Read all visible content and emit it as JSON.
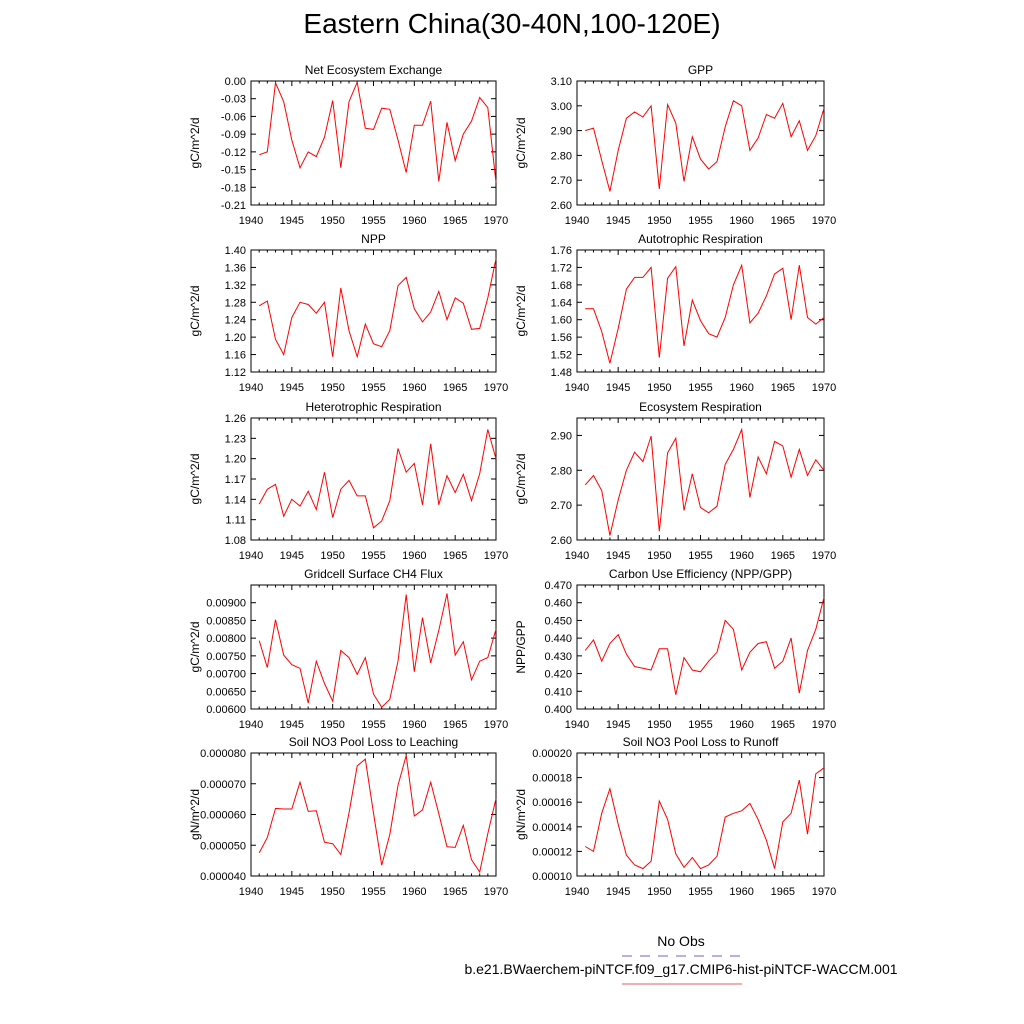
{
  "title": "Eastern China(30-40N,100-120E)",
  "legend": {
    "obs_label": "No Obs",
    "obs_color": "#6666cc",
    "case_label": "b.e21.BWaerchem-piNTCF.f09_g17.CMIP6-hist-piNTCF-WACCM.001",
    "case_color": "#e06060"
  },
  "series_color": "#ff0000",
  "chart_data": [
    {
      "type": "line",
      "title": "Net Ecosystem Exchange",
      "ylabel": "gC/m^2/d",
      "ylim": [
        -0.21,
        0.0
      ],
      "xlim": [
        1940,
        1970
      ],
      "yticks": [
        "0.00",
        "-0.03",
        "-0.06",
        "-0.09",
        "-0.12",
        "-0.15",
        "-0.18",
        "-0.21"
      ],
      "ytick_values": [
        0.0,
        -0.03,
        -0.06,
        -0.09,
        -0.12,
        -0.15,
        -0.18,
        -0.21
      ],
      "xticks": [
        "1940",
        "1945",
        "1950",
        "1955",
        "1960",
        "1965",
        "1970"
      ],
      "x": [
        1941,
        1942,
        1943,
        1944,
        1945,
        1946,
        1947,
        1948,
        1949,
        1950,
        1951,
        1952,
        1953,
        1954,
        1955,
        1956,
        1957,
        1958,
        1959,
        1960,
        1961,
        1962,
        1963,
        1964,
        1965,
        1966,
        1967,
        1968,
        1969,
        1970
      ],
      "values": [
        -0.125,
        -0.12,
        -0.003,
        -0.035,
        -0.1,
        -0.147,
        -0.12,
        -0.128,
        -0.095,
        -0.033,
        -0.147,
        -0.035,
        -0.002,
        -0.08,
        -0.082,
        -0.046,
        -0.048,
        -0.1,
        -0.155,
        -0.075,
        -0.075,
        -0.034,
        -0.17,
        -0.07,
        -0.135,
        -0.09,
        -0.068,
        -0.028,
        -0.045,
        -0.172
      ]
    },
    {
      "type": "line",
      "title": "GPP",
      "ylabel": "gC/m^2/d",
      "ylim": [
        2.6,
        3.1
      ],
      "xlim": [
        1940,
        1970
      ],
      "yticks": [
        "3.10",
        "3.00",
        "2.90",
        "2.80",
        "2.70",
        "2.60"
      ],
      "ytick_values": [
        3.1,
        3.0,
        2.9,
        2.8,
        2.7,
        2.6
      ],
      "xticks": [
        "1940",
        "1945",
        "1950",
        "1955",
        "1960",
        "1965",
        "1970"
      ],
      "x": [
        1941,
        1942,
        1943,
        1944,
        1945,
        1946,
        1947,
        1948,
        1949,
        1950,
        1951,
        1952,
        1953,
        1954,
        1955,
        1956,
        1957,
        1958,
        1959,
        1960,
        1961,
        1962,
        1963,
        1964,
        1965,
        1966,
        1967,
        1968,
        1969,
        1970
      ],
      "values": [
        2.9,
        2.91,
        2.78,
        2.655,
        2.82,
        2.95,
        2.975,
        2.955,
        3.0,
        2.665,
        3.005,
        2.93,
        2.695,
        2.875,
        2.785,
        2.745,
        2.775,
        2.915,
        3.02,
        3.0,
        2.82,
        2.87,
        2.965,
        2.95,
        3.01,
        2.875,
        2.94,
        2.82,
        2.88,
        2.99
      ]
    },
    {
      "type": "line",
      "title": "NPP",
      "ylabel": "gC/m^2/d",
      "ylim": [
        1.12,
        1.4
      ],
      "xlim": [
        1940,
        1970
      ],
      "yticks": [
        "1.40",
        "1.36",
        "1.32",
        "1.28",
        "1.24",
        "1.20",
        "1.16",
        "1.12"
      ],
      "ytick_values": [
        1.4,
        1.36,
        1.32,
        1.28,
        1.24,
        1.2,
        1.16,
        1.12
      ],
      "xticks": [
        "1940",
        "1945",
        "1950",
        "1955",
        "1960",
        "1965",
        "1970"
      ],
      "x": [
        1941,
        1942,
        1943,
        1944,
        1945,
        1946,
        1947,
        1948,
        1949,
        1950,
        1951,
        1952,
        1953,
        1954,
        1955,
        1956,
        1957,
        1958,
        1959,
        1960,
        1961,
        1962,
        1963,
        1964,
        1965,
        1966,
        1967,
        1968,
        1969,
        1970
      ],
      "values": [
        1.272,
        1.283,
        1.195,
        1.16,
        1.245,
        1.28,
        1.275,
        1.255,
        1.28,
        1.155,
        1.313,
        1.215,
        1.155,
        1.23,
        1.185,
        1.178,
        1.215,
        1.318,
        1.337,
        1.265,
        1.235,
        1.258,
        1.305,
        1.24,
        1.29,
        1.278,
        1.218,
        1.22,
        1.29,
        1.38
      ]
    },
    {
      "type": "line",
      "title": "Autotrophic Respiration",
      "ylabel": "gC/m^2/d",
      "ylim": [
        1.48,
        1.76
      ],
      "xlim": [
        1940,
        1970
      ],
      "yticks": [
        "1.76",
        "1.72",
        "1.68",
        "1.64",
        "1.60",
        "1.56",
        "1.52",
        "1.48"
      ],
      "ytick_values": [
        1.76,
        1.72,
        1.68,
        1.64,
        1.6,
        1.56,
        1.52,
        1.48
      ],
      "xticks": [
        "1940",
        "1945",
        "1950",
        "1955",
        "1960",
        "1965",
        "1970"
      ],
      "x": [
        1941,
        1942,
        1943,
        1944,
        1945,
        1946,
        1947,
        1948,
        1949,
        1950,
        1951,
        1952,
        1953,
        1954,
        1955,
        1956,
        1957,
        1958,
        1959,
        1960,
        1961,
        1962,
        1963,
        1964,
        1965,
        1966,
        1967,
        1968,
        1969,
        1970
      ],
      "values": [
        1.625,
        1.625,
        1.573,
        1.5,
        1.58,
        1.67,
        1.697,
        1.697,
        1.72,
        1.513,
        1.695,
        1.722,
        1.54,
        1.645,
        1.598,
        1.568,
        1.56,
        1.605,
        1.68,
        1.725,
        1.593,
        1.615,
        1.655,
        1.705,
        1.718,
        1.6,
        1.725,
        1.605,
        1.59,
        1.605
      ]
    },
    {
      "type": "line",
      "title": "Heterotrophic Respiration",
      "ylabel": "gC/m^2/d",
      "ylim": [
        1.08,
        1.26
      ],
      "xlim": [
        1940,
        1970
      ],
      "yticks": [
        "1.26",
        "1.23",
        "1.20",
        "1.17",
        "1.14",
        "1.11",
        "1.08"
      ],
      "ytick_values": [
        1.26,
        1.23,
        1.2,
        1.17,
        1.14,
        1.11,
        1.08
      ],
      "xticks": [
        "1940",
        "1945",
        "1950",
        "1955",
        "1960",
        "1965",
        "1970"
      ],
      "x": [
        1941,
        1942,
        1943,
        1944,
        1945,
        1946,
        1947,
        1948,
        1949,
        1950,
        1951,
        1952,
        1953,
        1954,
        1955,
        1956,
        1957,
        1958,
        1959,
        1960,
        1961,
        1962,
        1963,
        1964,
        1965,
        1966,
        1967,
        1968,
        1969,
        1970
      ],
      "values": [
        1.133,
        1.155,
        1.162,
        1.115,
        1.14,
        1.13,
        1.152,
        1.125,
        1.18,
        1.113,
        1.155,
        1.168,
        1.145,
        1.145,
        1.098,
        1.108,
        1.138,
        1.215,
        1.18,
        1.193,
        1.132,
        1.222,
        1.132,
        1.175,
        1.15,
        1.177,
        1.138,
        1.178,
        1.243,
        1.2
      ]
    },
    {
      "type": "line",
      "title": "Ecosystem Respiration",
      "ylabel": "gC/m^2/d",
      "ylim": [
        2.6,
        2.95
      ],
      "xlim": [
        1940,
        1970
      ],
      "yticks": [
        "2.90",
        "2.80",
        "2.70",
        "2.60"
      ],
      "ytick_values": [
        2.9,
        2.8,
        2.7,
        2.6
      ],
      "xticks": [
        "1940",
        "1945",
        "1950",
        "1955",
        "1960",
        "1965",
        "1970"
      ],
      "x": [
        1941,
        1942,
        1943,
        1944,
        1945,
        1946,
        1947,
        1948,
        1949,
        1950,
        1951,
        1952,
        1953,
        1954,
        1955,
        1956,
        1957,
        1958,
        1959,
        1960,
        1961,
        1962,
        1963,
        1964,
        1965,
        1966,
        1967,
        1968,
        1969,
        1970
      ],
      "values": [
        2.758,
        2.785,
        2.742,
        2.613,
        2.715,
        2.8,
        2.852,
        2.825,
        2.898,
        2.625,
        2.85,
        2.892,
        2.685,
        2.79,
        2.693,
        2.678,
        2.697,
        2.817,
        2.86,
        2.917,
        2.722,
        2.838,
        2.79,
        2.883,
        2.87,
        2.78,
        2.86,
        2.785,
        2.83,
        2.8
      ]
    },
    {
      "type": "line",
      "title": "Gridcell Surface CH4 Flux",
      "ylabel": "gC/m^2/d",
      "ylim": [
        0.006,
        0.0095
      ],
      "xlim": [
        1940,
        1970
      ],
      "yticks": [
        "0.00900",
        "0.00850",
        "0.00800",
        "0.00750",
        "0.00700",
        "0.00650",
        "0.00600"
      ],
      "ytick_values": [
        0.009,
        0.0085,
        0.008,
        0.0075,
        0.007,
        0.0065,
        0.006
      ],
      "xticks": [
        "1940",
        "1945",
        "1950",
        "1955",
        "1960",
        "1965",
        "1970"
      ],
      "x": [
        1941,
        1942,
        1943,
        1944,
        1945,
        1946,
        1947,
        1948,
        1949,
        1950,
        1951,
        1952,
        1953,
        1954,
        1955,
        1956,
        1957,
        1958,
        1959,
        1960,
        1961,
        1962,
        1963,
        1964,
        1965,
        1966,
        1967,
        1968,
        1969,
        1970
      ],
      "values": [
        0.00793,
        0.00717,
        0.00852,
        0.00752,
        0.00725,
        0.00715,
        0.00617,
        0.00735,
        0.00672,
        0.00622,
        0.00765,
        0.00745,
        0.00698,
        0.00745,
        0.00642,
        0.00605,
        0.00627,
        0.00735,
        0.00923,
        0.00705,
        0.00858,
        0.0073,
        0.00822,
        0.00926,
        0.00752,
        0.0079,
        0.00682,
        0.00735,
        0.00745,
        0.00825
      ]
    },
    {
      "type": "line",
      "title": "Carbon Use Efficiency (NPP/GPP)",
      "ylabel": "NPP/GPP",
      "ylim": [
        0.4,
        0.47
      ],
      "xlim": [
        1940,
        1970
      ],
      "yticks": [
        "0.470",
        "0.460",
        "0.450",
        "0.440",
        "0.430",
        "0.420",
        "0.410",
        "0.400"
      ],
      "ytick_values": [
        0.47,
        0.46,
        0.45,
        0.44,
        0.43,
        0.42,
        0.41,
        0.4
      ],
      "xticks": [
        "1940",
        "1945",
        "1950",
        "1955",
        "1960",
        "1965",
        "1970"
      ],
      "x": [
        1941,
        1942,
        1943,
        1944,
        1945,
        1946,
        1947,
        1948,
        1949,
        1950,
        1951,
        1952,
        1953,
        1954,
        1955,
        1956,
        1957,
        1958,
        1959,
        1960,
        1961,
        1962,
        1963,
        1964,
        1965,
        1966,
        1967,
        1968,
        1969,
        1970
      ],
      "values": [
        0.433,
        0.439,
        0.427,
        0.437,
        0.442,
        0.431,
        0.424,
        0.423,
        0.422,
        0.434,
        0.434,
        0.408,
        0.429,
        0.422,
        0.421,
        0.427,
        0.432,
        0.45,
        0.445,
        0.422,
        0.432,
        0.437,
        0.438,
        0.423,
        0.427,
        0.44,
        0.409,
        0.433,
        0.445,
        0.463
      ]
    },
    {
      "type": "line",
      "title": "Soil NO3 Pool Loss to Leaching",
      "ylabel": "gN/m^2/d",
      "ylim": [
        4e-05,
        8e-05
      ],
      "xlim": [
        1940,
        1970
      ],
      "yticks": [
        "0.000080",
        "0.000070",
        "0.000060",
        "0.000050",
        "0.000040"
      ],
      "ytick_values": [
        8e-05,
        7e-05,
        6e-05,
        5e-05,
        4e-05
      ],
      "xticks": [
        "1940",
        "1945",
        "1950",
        "1955",
        "1960",
        "1965",
        "1970"
      ],
      "x": [
        1941,
        1942,
        1943,
        1944,
        1945,
        1946,
        1947,
        1948,
        1949,
        1950,
        1951,
        1952,
        1953,
        1954,
        1955,
        1956,
        1957,
        1958,
        1959,
        1960,
        1961,
        1962,
        1963,
        1964,
        1965,
        1966,
        1967,
        1968,
        1969,
        1970
      ],
      "values": [
        4.75e-05,
        5.25e-05,
        6.2e-05,
        6.18e-05,
        6.18e-05,
        7.05e-05,
        6.1e-05,
        6.12e-05,
        5.1e-05,
        5.05e-05,
        4.7e-05,
        6.05e-05,
        7.58e-05,
        7.8e-05,
        6.05e-05,
        4.35e-05,
        5.35e-05,
        6.95e-05,
        7.92e-05,
        5.95e-05,
        6.15e-05,
        7.05e-05,
        6.03e-05,
        4.95e-05,
        4.93e-05,
        5.65e-05,
        4.53e-05,
        4.13e-05,
        5.38e-05,
        6.52e-05
      ]
    },
    {
      "type": "line",
      "title": "Soil NO3 Pool Loss to Runoff",
      "ylabel": "gN/m^2/d",
      "ylim": [
        0.0001,
        0.0002
      ],
      "xlim": [
        1940,
        1970
      ],
      "yticks": [
        "0.00020",
        "0.00018",
        "0.00016",
        "0.00014",
        "0.00012",
        "0.00010"
      ],
      "ytick_values": [
        0.0002,
        0.00018,
        0.00016,
        0.00014,
        0.00012,
        0.0001
      ],
      "xticks": [
        "1940",
        "1945",
        "1950",
        "1955",
        "1960",
        "1965",
        "1970"
      ],
      "x": [
        1941,
        1942,
        1943,
        1944,
        1945,
        1946,
        1947,
        1948,
        1949,
        1950,
        1951,
        1952,
        1953,
        1954,
        1955,
        1956,
        1957,
        1958,
        1959,
        1960,
        1961,
        1962,
        1963,
        1964,
        1965,
        1966,
        1967,
        1968,
        1969,
        1970
      ],
      "values": [
        0.000124,
        0.00012,
        0.000151,
        0.000171,
        0.000142,
        0.000117,
        0.000109,
        0.000106,
        0.000112,
        0.000161,
        0.000146,
        0.000118,
        0.000107,
        0.000115,
        0.000106,
        0.000109,
        0.000116,
        0.000148,
        0.000151,
        0.000153,
        0.000159,
        0.000146,
        0.000129,
        0.000106,
        0.000144,
        0.000151,
        0.000178,
        0.000134,
        0.000183,
        0.000188
      ]
    }
  ]
}
